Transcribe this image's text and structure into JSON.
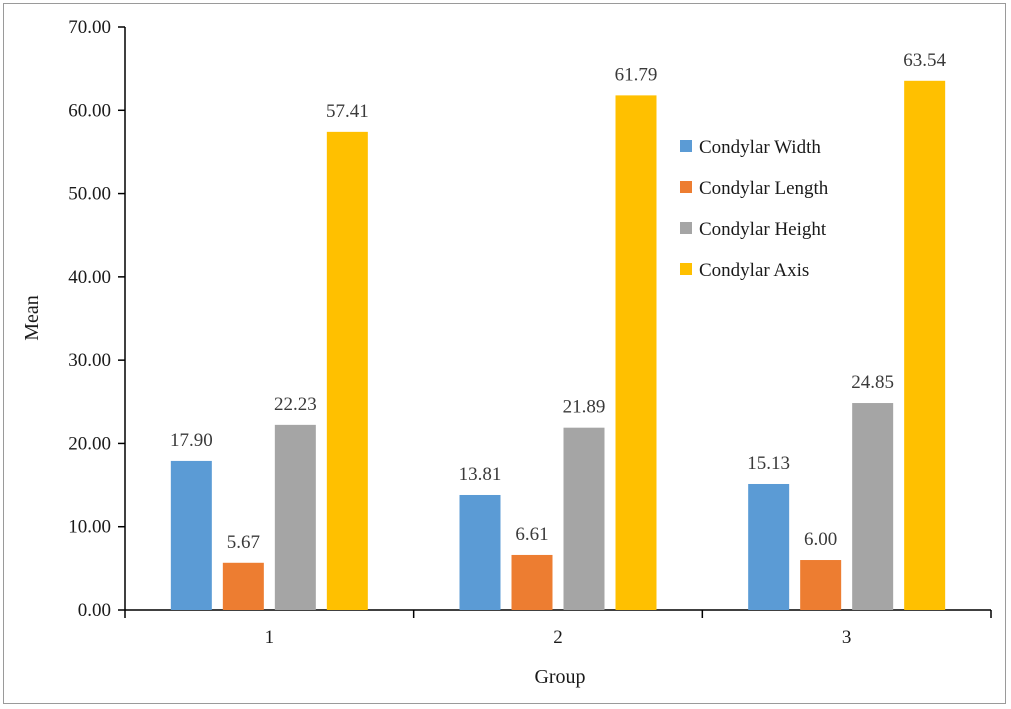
{
  "chart_data": {
    "type": "bar",
    "title": "",
    "xlabel": "Group",
    "ylabel": "Mean",
    "categories": [
      "1",
      "2",
      "3"
    ],
    "ylim": [
      0,
      70
    ],
    "yticks": [
      "0.00",
      "10.00",
      "20.00",
      "30.00",
      "40.00",
      "50.00",
      "60.00",
      "70.00"
    ],
    "grid": false,
    "legend_position": "right",
    "series": [
      {
        "name": "Condylar Width",
        "color": "#5b9bd5",
        "values": [
          17.9,
          13.81,
          15.13
        ],
        "labels": [
          "17.90",
          "13.81",
          "15.13"
        ]
      },
      {
        "name": "Condylar Length",
        "color": "#ed7d31",
        "values": [
          5.67,
          6.61,
          6.0
        ],
        "labels": [
          "5.67",
          "6.61",
          "6.00"
        ]
      },
      {
        "name": "Condylar Height",
        "color": "#a5a5a5",
        "values": [
          22.23,
          21.89,
          24.85
        ],
        "labels": [
          "22.23",
          "21.89",
          "24.85"
        ]
      },
      {
        "name": "Condylar Axis",
        "color": "#ffc000",
        "values": [
          57.41,
          61.79,
          63.54
        ],
        "labels": [
          "57.41",
          "61.79",
          "63.54"
        ]
      }
    ]
  }
}
